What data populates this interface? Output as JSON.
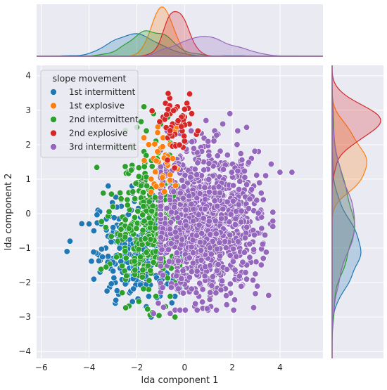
{
  "chart_data": {
    "type": "scatter",
    "title": "",
    "xlabel": "lda component 1",
    "ylabel": "lda component 2",
    "xlim": [
      -6.2,
      5.8
    ],
    "ylim": [
      -4.2,
      4.3
    ],
    "xticks": [
      -6,
      -4,
      -2,
      0,
      2,
      4
    ],
    "yticks": [
      -4,
      -3,
      -2,
      -1,
      0,
      1,
      2,
      3,
      4
    ],
    "xtick_labels": [
      "−6",
      "−4",
      "−2",
      "0",
      "2",
      "4"
    ],
    "ytick_labels": [
      "−4",
      "−3",
      "−2",
      "−1",
      "0",
      "1",
      "2",
      "3",
      "4"
    ],
    "grid": true,
    "legend_title": "slope movement",
    "legend_position": "upper-left",
    "marginals": "kde (top: lda component 1, right: lda component 2)",
    "series": [
      {
        "name": "1st intermittent",
        "color": "#1f77b4",
        "approx_center": [
          -2.0,
          -1.0
        ],
        "approx_spread": [
          0.9,
          0.75
        ],
        "points": [
          [
            -4.8,
            -0.8
          ],
          [
            -4.0,
            -0.3
          ],
          [
            -3.8,
            -0.5
          ],
          [
            -3.5,
            -0.3
          ],
          [
            -3.3,
            -1.0
          ],
          [
            -3.6,
            -1.2
          ],
          [
            -3.8,
            -1.9
          ],
          [
            -3.1,
            -1.6
          ],
          [
            -2.9,
            -2.0
          ],
          [
            -2.9,
            -2.6
          ],
          [
            -3.2,
            0.8
          ],
          [
            -3.0,
            -1.3
          ],
          [
            -2.7,
            -0.9
          ],
          [
            -2.5,
            -1.4
          ],
          [
            -2.4,
            -1.9
          ],
          [
            -2.3,
            -2.3
          ],
          [
            -2.6,
            -1.7
          ],
          [
            -2.2,
            -1.2
          ],
          [
            -2.1,
            -0.7
          ],
          [
            -2.0,
            -1.6
          ],
          [
            -1.9,
            -2.0
          ],
          [
            -1.8,
            -1.4
          ],
          [
            -1.7,
            -0.8
          ],
          [
            -1.6,
            -1.9
          ],
          [
            -1.5,
            -2.4
          ],
          [
            -1.4,
            -1.5
          ],
          [
            -1.3,
            -1.1
          ],
          [
            -1.2,
            -1.8
          ],
          [
            -1.1,
            -0.6
          ],
          [
            -1.0,
            -1.3
          ],
          [
            -0.9,
            -2.1
          ],
          [
            -0.8,
            -1.7
          ],
          [
            -0.7,
            -1.0
          ],
          [
            -0.6,
            -1.5
          ],
          [
            -0.5,
            -1.9
          ],
          [
            -1.6,
            -2.7
          ],
          [
            -2.8,
            -1.2
          ],
          [
            -2.5,
            -0.5
          ],
          [
            -2.2,
            0.8
          ],
          [
            -1.9,
            -0.3
          ],
          [
            -0.4,
            -2.4
          ],
          [
            2.4,
            0.3
          ],
          [
            2.1,
            1.4
          ],
          [
            1.6,
            0.8
          ],
          [
            -1.4,
            -3.0
          ]
        ]
      },
      {
        "name": "1st explosive",
        "color": "#ff7f0e",
        "approx_center": [
          -0.9,
          1.5
        ],
        "approx_spread": [
          0.4,
          0.6
        ],
        "points": [
          [
            -1.7,
            2.2
          ],
          [
            -1.5,
            2.0
          ],
          [
            -1.3,
            1.6
          ],
          [
            -1.2,
            1.2
          ],
          [
            -1.1,
            1.5
          ],
          [
            -1.0,
            1.9
          ],
          [
            -0.9,
            2.2
          ],
          [
            -0.8,
            1.7
          ],
          [
            -0.7,
            1.4
          ],
          [
            -0.6,
            2.0
          ],
          [
            -0.5,
            1.6
          ],
          [
            -0.4,
            2.4
          ],
          [
            -1.4,
            1.0
          ],
          [
            -0.9,
            1.1
          ],
          [
            -1.0,
            0.8
          ],
          [
            -0.3,
            1.3
          ]
        ]
      },
      {
        "name": "2nd intermittent",
        "color": "#2ca02c",
        "approx_center": [
          -1.5,
          -0.3
        ],
        "approx_spread": [
          0.8,
          1.0
        ],
        "points": [
          [
            -3.3,
            -0.4
          ],
          [
            -3.0,
            0.2
          ],
          [
            -2.8,
            -0.8
          ],
          [
            -2.7,
            0.6
          ],
          [
            -2.6,
            -0.1
          ],
          [
            -2.5,
            -1.0
          ],
          [
            -2.4,
            0.4
          ],
          [
            -2.3,
            -0.5
          ],
          [
            -2.2,
            1.4
          ],
          [
            -2.1,
            -0.2
          ],
          [
            -2.0,
            0.9
          ],
          [
            -1.9,
            -0.9
          ],
          [
            -1.8,
            0.3
          ],
          [
            -1.7,
            1.8
          ],
          [
            -1.6,
            -0.4
          ],
          [
            -1.5,
            0.7
          ],
          [
            -1.4,
            -1.2
          ],
          [
            -1.3,
            0.1
          ],
          [
            -1.2,
            2.1
          ],
          [
            -1.1,
            -0.6
          ],
          [
            -1.0,
            1.1
          ],
          [
            -0.9,
            -1.6
          ],
          [
            -0.8,
            0.4
          ],
          [
            -0.7,
            2.8
          ],
          [
            -0.6,
            -0.9
          ],
          [
            -0.5,
            1.6
          ],
          [
            -0.4,
            -2.0
          ],
          [
            -0.3,
            0.8
          ],
          [
            -2.0,
            2.5
          ],
          [
            -1.7,
            3.1
          ],
          [
            -1.3,
            2.9
          ],
          [
            -1.9,
            -1.8
          ],
          [
            -1.5,
            -2.2
          ],
          [
            -0.8,
            -2.7
          ],
          [
            -0.4,
            -3.0
          ],
          [
            -1.2,
            -2.4
          ],
          [
            -2.2,
            1.9
          ],
          [
            -2.4,
            1.2
          ],
          [
            -1.6,
            2.4
          ],
          [
            -1.0,
            2.6
          ],
          [
            -0.6,
            -2.4
          ],
          [
            -0.2,
            -1.5
          ]
        ]
      },
      {
        "name": "2nd explosive",
        "color": "#d62728",
        "approx_center": [
          -0.3,
          2.5
        ],
        "approx_spread": [
          0.35,
          0.4
        ],
        "points": [
          [
            -0.9,
            2.8
          ],
          [
            -0.8,
            2.5
          ],
          [
            -0.7,
            2.2
          ],
          [
            -0.6,
            2.9
          ],
          [
            -0.5,
            2.6
          ],
          [
            -0.4,
            2.3
          ],
          [
            -0.3,
            3.1
          ],
          [
            -0.2,
            2.7
          ],
          [
            -0.1,
            2.4
          ],
          [
            0.0,
            2.8
          ],
          [
            0.1,
            3.2
          ],
          [
            0.2,
            2.6
          ],
          [
            0.3,
            2.9
          ],
          [
            0.5,
            2.3
          ],
          [
            -0.8,
            3.2
          ],
          [
            -0.4,
            2.0
          ],
          [
            0.0,
            2.1
          ]
        ]
      },
      {
        "name": "3rd intermittent",
        "color": "#9467bd",
        "approx_center": [
          0.9,
          -0.3
        ],
        "approx_spread": [
          1.1,
          1.0
        ],
        "points": [
          [
            -0.6,
            -2.9
          ],
          [
            -1.1,
            -2.6
          ],
          [
            -0.3,
            -2.2
          ],
          [
            0.1,
            -1.8
          ],
          [
            0.6,
            -2.4
          ],
          [
            1.1,
            -2.7
          ],
          [
            1.6,
            -2.1
          ],
          [
            2.1,
            -2.5
          ],
          [
            2.6,
            -1.9
          ],
          [
            3.0,
            -1.4
          ],
          [
            3.3,
            -0.9
          ],
          [
            3.6,
            -0.3
          ],
          [
            3.3,
            0.4
          ],
          [
            3.4,
            1.1
          ],
          [
            4.0,
            1.2
          ],
          [
            4.5,
            1.2
          ],
          [
            3.1,
            1.8
          ],
          [
            2.6,
            2.5
          ],
          [
            1.9,
            2.9
          ],
          [
            1.4,
            2.3
          ],
          [
            0.9,
            2.7
          ],
          [
            0.4,
            2.1
          ],
          [
            -0.1,
            1.6
          ],
          [
            -0.4,
            0.9
          ],
          [
            -0.6,
            0.2
          ],
          [
            -0.7,
            -0.6
          ],
          [
            -0.4,
            -1.3
          ],
          [
            0.2,
            -0.9
          ],
          [
            0.7,
            -0.4
          ],
          [
            1.2,
            -1.1
          ],
          [
            1.7,
            -0.5
          ],
          [
            2.2,
            -1.2
          ],
          [
            2.7,
            -0.6
          ],
          [
            3.2,
            0.1
          ],
          [
            2.9,
            0.8
          ],
          [
            2.4,
            1.3
          ],
          [
            1.8,
            1.7
          ],
          [
            1.2,
            1.1
          ],
          [
            0.6,
            0.6
          ],
          [
            0.1,
            0.1
          ],
          [
            0.4,
            -0.2
          ],
          [
            0.9,
            0.3
          ],
          [
            1.5,
            0.2
          ],
          [
            2.0,
            0.5
          ],
          [
            2.5,
            -0.1
          ],
          [
            0.3,
            1.3
          ],
          [
            0.8,
            1.5
          ],
          [
            1.3,
            -0.2
          ],
          [
            1.9,
            -0.9
          ],
          [
            0.0,
            -0.6
          ],
          [
            -0.2,
            -1.9
          ],
          [
            0.5,
            -1.5
          ],
          [
            1.0,
            -1.9
          ],
          [
            1.5,
            -1.5
          ],
          [
            2.4,
            -1.7
          ],
          [
            2.9,
            -1.1
          ],
          [
            -1.3,
            -2.9
          ],
          [
            2.2,
            2.0
          ],
          [
            1.6,
            2.6
          ],
          [
            2.8,
            1.6
          ]
        ]
      }
    ]
  }
}
